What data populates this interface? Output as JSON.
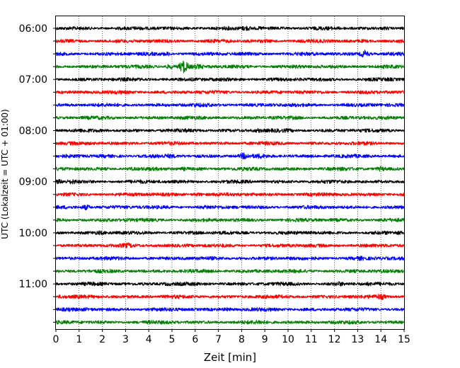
{
  "chart_data": {
    "type": "line",
    "title": "",
    "xlabel": "Zeit  [min]",
    "ylabel": "UTC (Lokalzeit = UTC + 01:00)",
    "xlim": [
      0,
      15
    ],
    "x_ticks": [
      0,
      1,
      2,
      3,
      4,
      5,
      6,
      7,
      8,
      9,
      10,
      11,
      12,
      13,
      14,
      15
    ],
    "grid": "vertical dotted lines at each minute",
    "row_interval_min": 15,
    "start_time": "06:00",
    "y_tick_labels": [
      "06:00",
      "07:00",
      "08:00",
      "09:00",
      "10:00",
      "11:00"
    ],
    "color_cycle": [
      "#000000",
      "#ff0000",
      "#0000ff",
      "#008000"
    ],
    "rows": [
      {
        "time": "06:00",
        "color": "#000000",
        "events": [
          {
            "t": 8.2,
            "amp": 1.8
          },
          {
            "t": 8.8,
            "amp": 1.3
          },
          {
            "t": 14.2,
            "amp": 1.4
          }
        ]
      },
      {
        "time": "06:15",
        "color": "#ff0000",
        "events": [
          {
            "t": 9.1,
            "amp": 1.2
          },
          {
            "t": 13.2,
            "amp": 1.2
          }
        ]
      },
      {
        "time": "06:30",
        "color": "#0000ff",
        "events": [
          {
            "t": 4.8,
            "amp": 1.6
          },
          {
            "t": 13.3,
            "amp": 2.8
          }
        ]
      },
      {
        "time": "06:45",
        "color": "#008000",
        "events": [
          {
            "t": 5.5,
            "amp": 4.5
          },
          {
            "t": 4.9,
            "amp": 2.0
          },
          {
            "t": 6.1,
            "amp": 1.6
          },
          {
            "t": 3.0,
            "amp": 1.2
          }
        ]
      },
      {
        "time": "07:00",
        "color": "#000000",
        "events": [
          {
            "t": 5.8,
            "amp": 1.2
          },
          {
            "t": 14.3,
            "amp": 1.2
          }
        ]
      },
      {
        "time": "07:15",
        "color": "#ff0000",
        "events": [
          {
            "t": 3.9,
            "amp": 1.2
          },
          {
            "t": 11.0,
            "amp": 1.1
          }
        ]
      },
      {
        "time": "07:30",
        "color": "#0000ff",
        "events": [
          {
            "t": 6.0,
            "amp": 1.3
          },
          {
            "t": 9.6,
            "amp": 1.1
          }
        ]
      },
      {
        "time": "07:45",
        "color": "#008000",
        "events": [
          {
            "t": 10.5,
            "amp": 1.0
          }
        ]
      },
      {
        "time": "08:00",
        "color": "#000000",
        "events": [
          {
            "t": 8.7,
            "amp": 1.5
          },
          {
            "t": 10.0,
            "amp": 1.2
          }
        ]
      },
      {
        "time": "08:15",
        "color": "#ff0000",
        "events": [
          {
            "t": 3.2,
            "amp": 1.2
          },
          {
            "t": 9.5,
            "amp": 1.1
          }
        ]
      },
      {
        "time": "08:30",
        "color": "#0000ff",
        "events": [
          {
            "t": 2.1,
            "amp": 1.3
          },
          {
            "t": 4.9,
            "amp": 1.4
          },
          {
            "t": 8.1,
            "amp": 2.2
          },
          {
            "t": 8.8,
            "amp": 1.5
          }
        ]
      },
      {
        "time": "08:45",
        "color": "#008000",
        "events": [
          {
            "t": 3.2,
            "amp": 1.4
          },
          {
            "t": 5.5,
            "amp": 1.4
          },
          {
            "t": 14.0,
            "amp": 1.8
          }
        ]
      },
      {
        "time": "09:00",
        "color": "#000000",
        "events": [
          {
            "t": 0.1,
            "amp": 1.6
          },
          {
            "t": 0.7,
            "amp": 1.7
          },
          {
            "t": 3.7,
            "amp": 1.1
          }
        ]
      },
      {
        "time": "09:15",
        "color": "#ff0000",
        "events": [
          {
            "t": 6.1,
            "amp": 1.6
          },
          {
            "t": 13.8,
            "amp": 1.1
          }
        ]
      },
      {
        "time": "09:30",
        "color": "#0000ff",
        "events": [
          {
            "t": 1.3,
            "amp": 2.2
          },
          {
            "t": 6.5,
            "amp": 1.3
          }
        ]
      },
      {
        "time": "09:45",
        "color": "#008000",
        "events": [
          {
            "t": 3.1,
            "amp": 1.1
          },
          {
            "t": 12.2,
            "amp": 1.1
          }
        ]
      },
      {
        "time": "10:00",
        "color": "#000000",
        "events": [
          {
            "t": 1.9,
            "amp": 1.4
          },
          {
            "t": 7.0,
            "amp": 1.1
          },
          {
            "t": 14.8,
            "amp": 1.3
          }
        ]
      },
      {
        "time": "10:15",
        "color": "#ff0000",
        "events": [
          {
            "t": 3.1,
            "amp": 1.6
          },
          {
            "t": 4.3,
            "amp": 1.3
          }
        ]
      },
      {
        "time": "10:30",
        "color": "#0000ff",
        "events": [
          {
            "t": 8.0,
            "amp": 1.2
          },
          {
            "t": 13.1,
            "amp": 1.4
          }
        ]
      },
      {
        "time": "10:45",
        "color": "#008000",
        "events": [
          {
            "t": 5.3,
            "amp": 1.0
          }
        ]
      },
      {
        "time": "11:00",
        "color": "#000000",
        "events": [
          {
            "t": 4.8,
            "amp": 1.4
          },
          {
            "t": 12.2,
            "amp": 1.6
          },
          {
            "t": 13.5,
            "amp": 1.3
          }
        ]
      },
      {
        "time": "11:15",
        "color": "#ff0000",
        "events": [
          {
            "t": 0.2,
            "amp": 1.4
          },
          {
            "t": 14.0,
            "amp": 2.2
          }
        ]
      },
      {
        "time": "11:30",
        "color": "#0000ff",
        "events": [
          {
            "t": 1.4,
            "amp": 1.3
          },
          {
            "t": 7.4,
            "amp": 1.5
          }
        ]
      },
      {
        "time": "11:45",
        "color": "#008000",
        "events": [
          {
            "t": 8.8,
            "amp": 1.5
          },
          {
            "t": 11.5,
            "amp": 1.0
          }
        ]
      }
    ]
  }
}
